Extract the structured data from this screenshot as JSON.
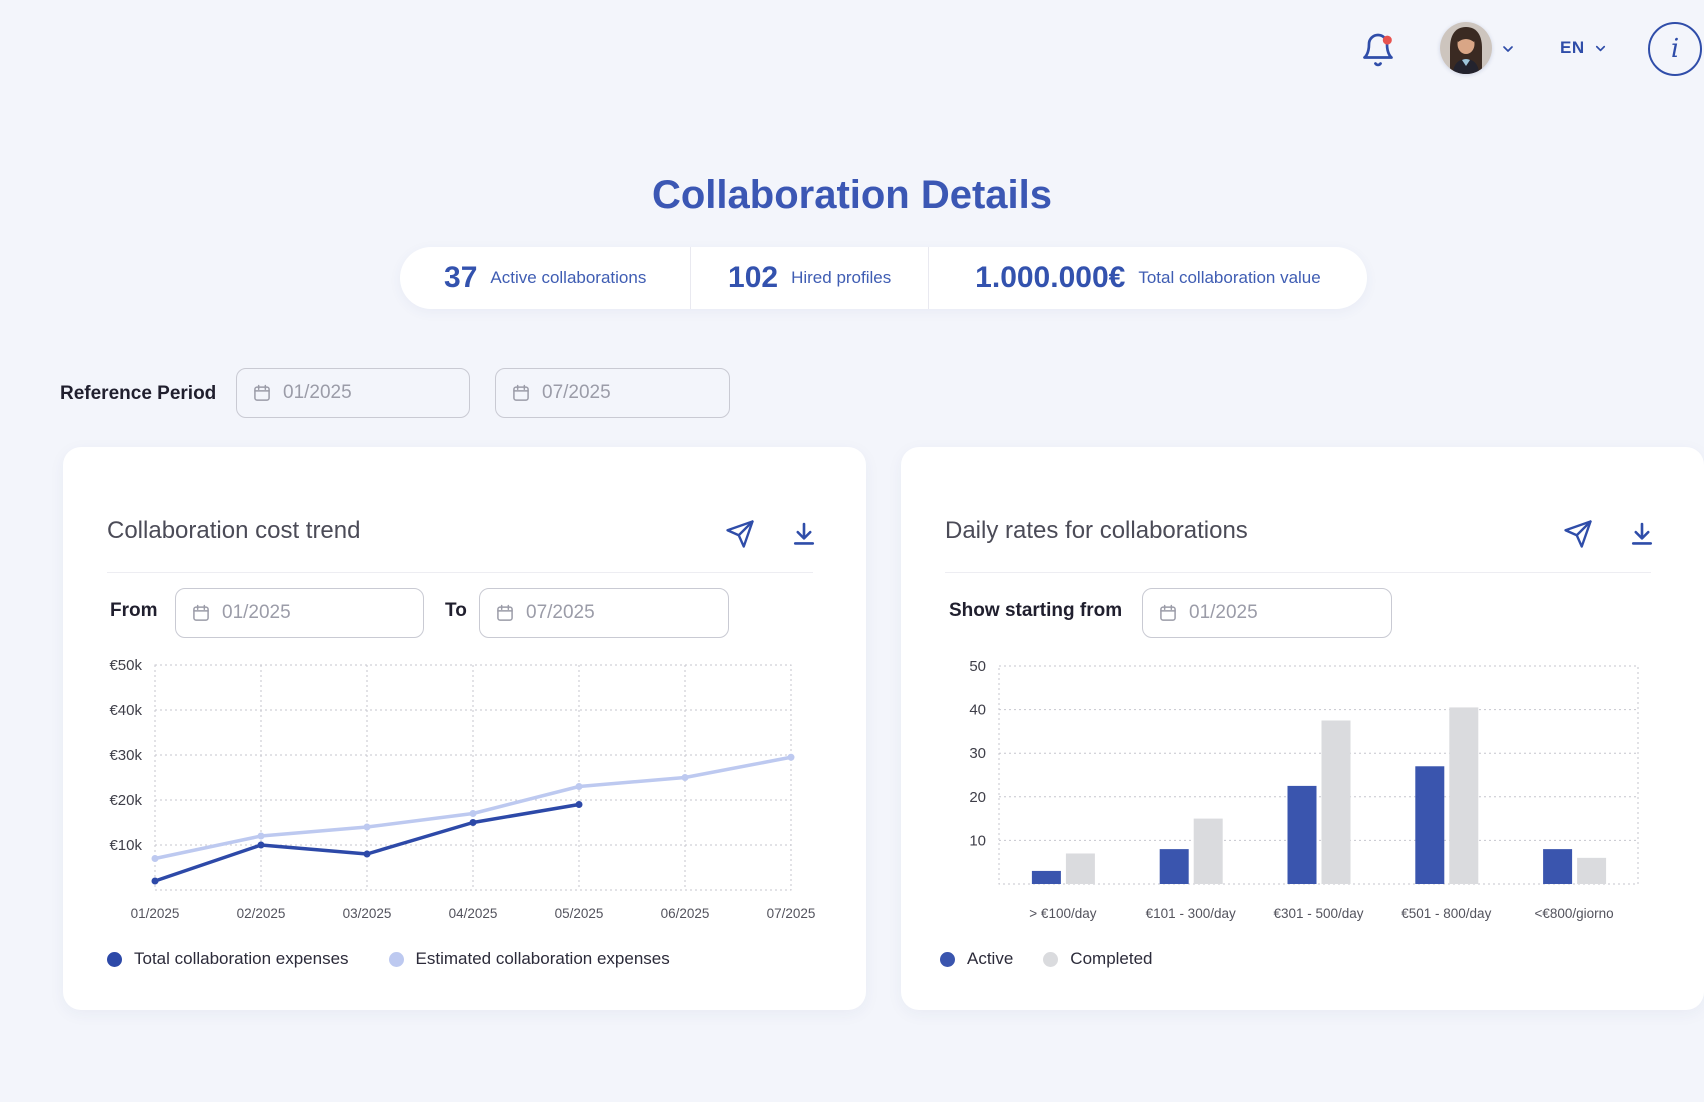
{
  "header": {
    "language": "EN",
    "info_glyph": "i"
  },
  "page": {
    "title": "Collaboration Details"
  },
  "stats": [
    {
      "value": "37",
      "label": "Active collaborations"
    },
    {
      "value": "102",
      "label": "Hired profiles"
    },
    {
      "value": "1.000.000€",
      "label": "Total collaboration value"
    }
  ],
  "reference_period": {
    "label": "Reference Period",
    "from_value": "01/2025",
    "to_value": "07/2025"
  },
  "cost_trend_card": {
    "title": "Collaboration cost trend",
    "from_label": "From",
    "from_value": "01/2025",
    "to_label": "To",
    "to_value": "07/2025"
  },
  "daily_rates_card": {
    "title": "Daily rates for collaborations",
    "filter_label": "Show starting from",
    "filter_value": "01/2025"
  },
  "colors": {
    "primary_blue": "#2f4da9",
    "title_blue": "#3b57b4",
    "line_dark": "#2d49a8",
    "line_light": "#bdc9f0",
    "bar_blue": "#3a55ae",
    "bar_gray": "#dadbde",
    "notification_dot": "#e8524e",
    "grid": "#c6c6ce",
    "background": "#f3f5fb"
  },
  "chart_data": [
    {
      "type": "line",
      "title": "Collaboration cost trend",
      "categories": [
        "01/2025",
        "02/2025",
        "03/2025",
        "04/2025",
        "05/2025",
        "06/2025",
        "07/2025"
      ],
      "series": [
        {
          "name": "Total collaboration expenses",
          "color": "#2d49a8",
          "values": [
            2,
            10,
            8,
            15,
            19,
            null,
            null
          ]
        },
        {
          "name": "Estimated collaboration expenses",
          "color": "#bdc9f0",
          "values": [
            7,
            12,
            14,
            17,
            23,
            25,
            29.5
          ]
        }
      ],
      "value_unit": "k€",
      "ylim": [
        0,
        50
      ],
      "ytick_step": 10,
      "ytick_labels": [
        "€10k",
        "€20k",
        "€30k",
        "€40k",
        "€50k"
      ],
      "grid": "dotted",
      "legend_position": "bottom-left"
    },
    {
      "type": "bar",
      "title": "Daily rates for collaborations",
      "categories": [
        "> €100/day",
        "€101 - 300/day",
        "€301 - 500/day",
        "€501 - 800/day",
        "<€800/giorno"
      ],
      "series": [
        {
          "name": "Active",
          "color": "#3a55ae",
          "values": [
            3,
            8,
            22.5,
            27,
            8
          ]
        },
        {
          "name": "Completed",
          "color": "#dadbde",
          "values": [
            7,
            15,
            37.5,
            40.5,
            6
          ]
        }
      ],
      "ylim": [
        0,
        50
      ],
      "ytick_step": 10,
      "ytick_labels": [
        "10",
        "20",
        "30",
        "40",
        "50"
      ],
      "grid": "dotted",
      "legend_position": "bottom-left"
    }
  ]
}
